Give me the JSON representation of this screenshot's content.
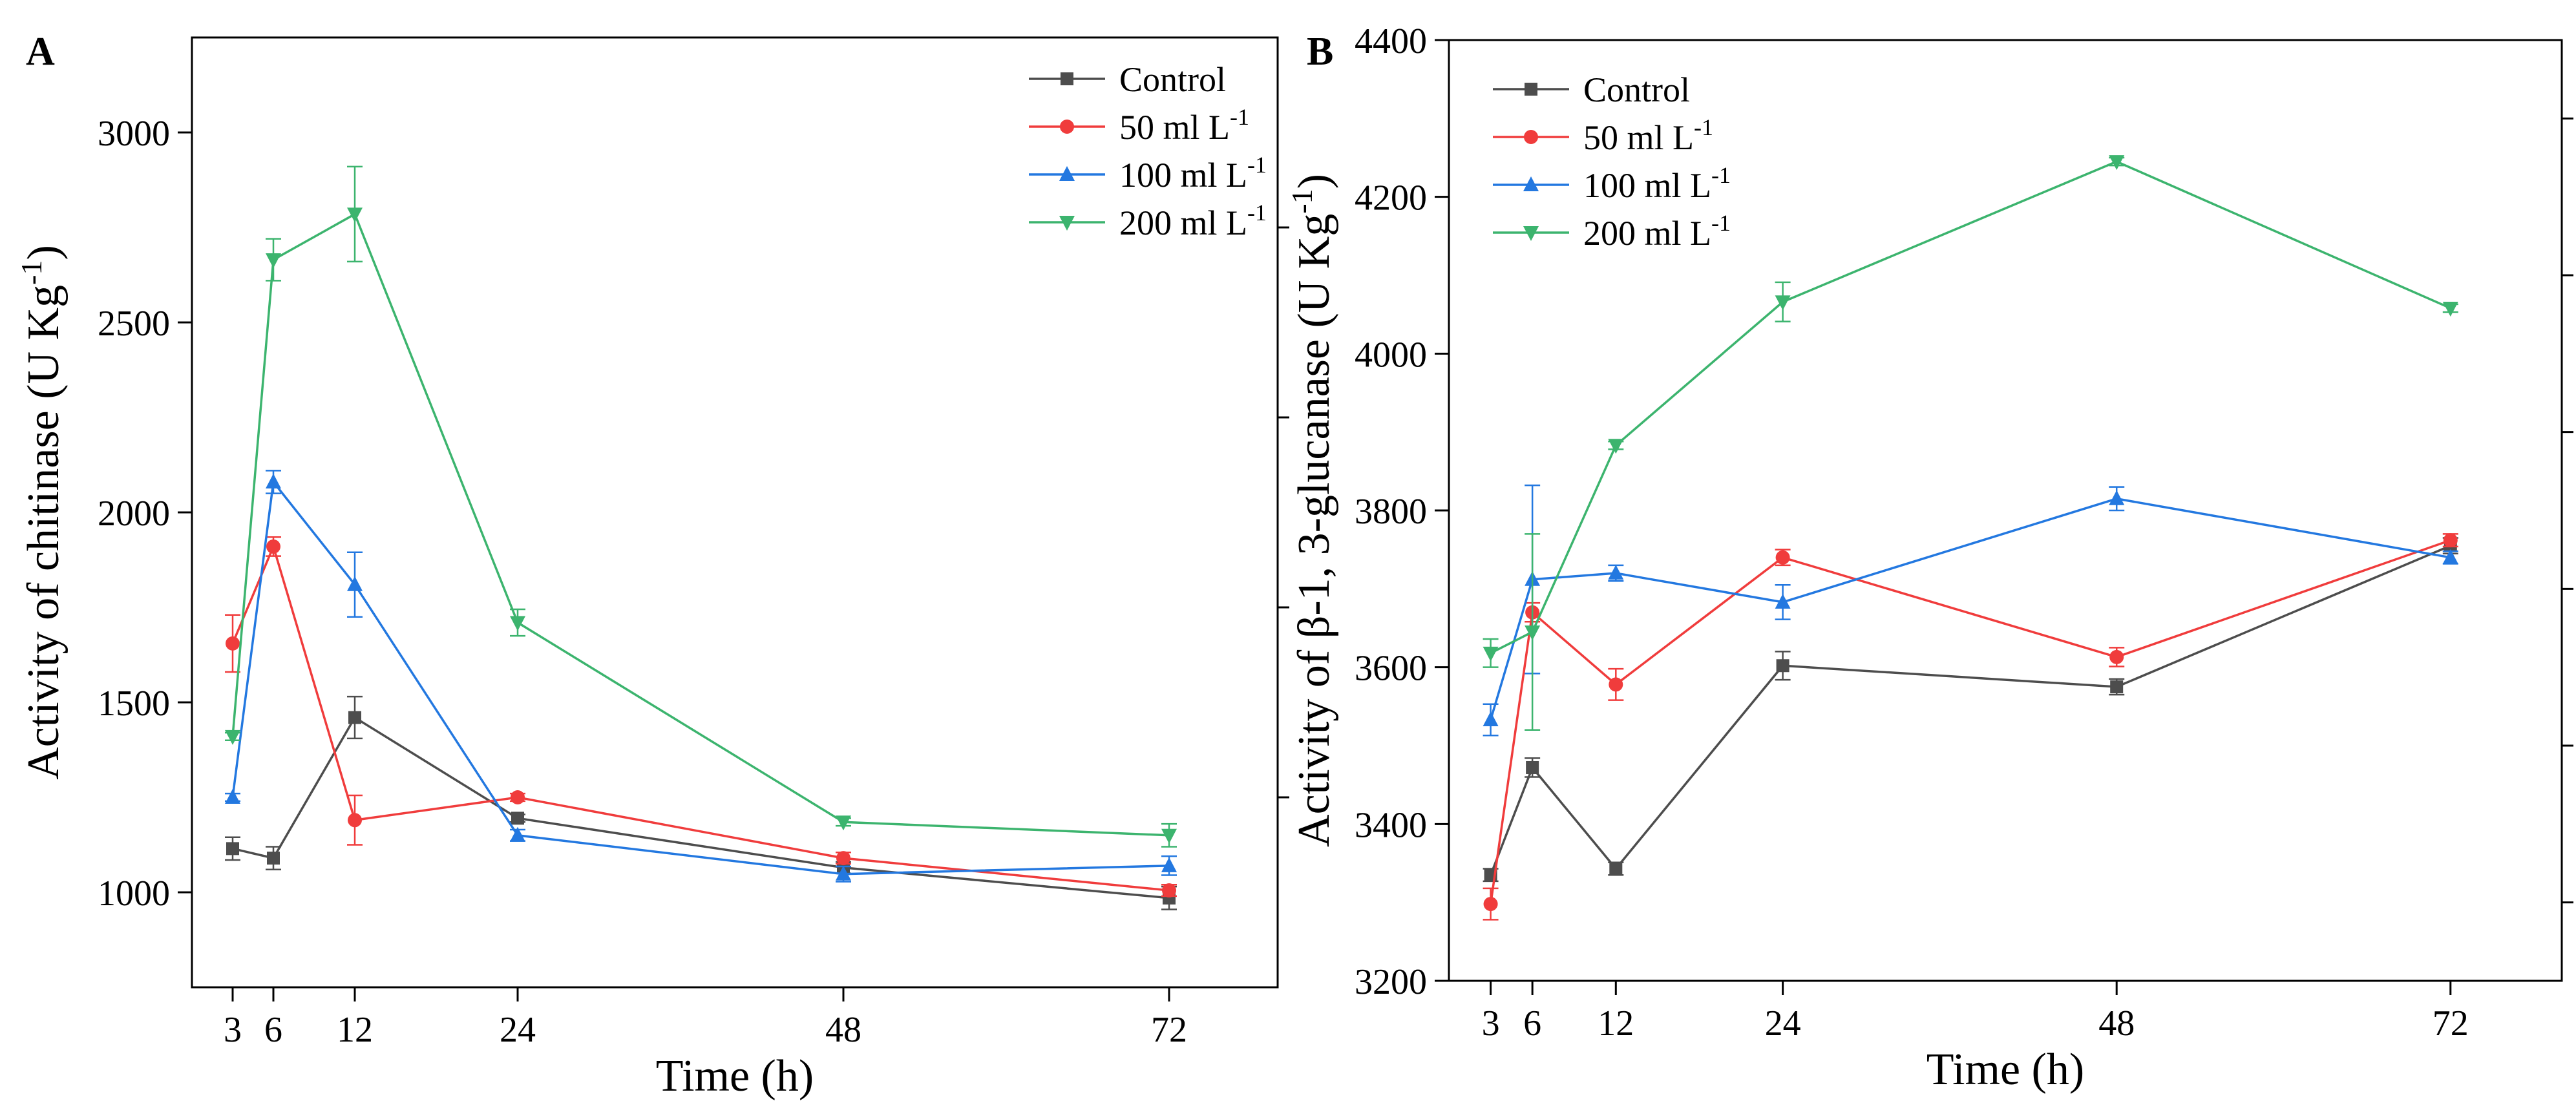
{
  "chart_data": [
    {
      "type": "line",
      "panel_label": "A",
      "xlabel": "Time (h)",
      "ylabel": "Activity of chitinase (U Kg",
      "ylabel_sup": "-1",
      "ylabel_tail": ")",
      "x": [
        3,
        6,
        12,
        24,
        48,
        72
      ],
      "x_ticks": [
        "3",
        "6",
        "12",
        "24",
        "48",
        "72"
      ],
      "xlim": [
        0,
        80
      ],
      "ylim": [
        750,
        3250
      ],
      "y_ticks": [
        "1000",
        "1500",
        "2000",
        "2500",
        "3000"
      ],
      "legend_position": "top-right",
      "series": [
        {
          "name": "Control",
          "unit_base": "",
          "unit_sup": "",
          "color": "#4d4d4d",
          "marker": "square",
          "values": [
            1115,
            1090,
            1460,
            1195,
            1065,
            985
          ],
          "errors": [
            30,
            30,
            55,
            10,
            15,
            30
          ]
        },
        {
          "name": "50 ml L",
          "unit_sup": "-1",
          "color": "#f03c3c",
          "marker": "circle",
          "values": [
            1655,
            1910,
            1190,
            1250,
            1090,
            1005
          ],
          "errors": [
            75,
            25,
            65,
            10,
            15,
            15
          ]
        },
        {
          "name": "100 ml L",
          "unit_sup": "-1",
          "color": "#2378e0",
          "marker": "triangle-up",
          "values": [
            1250,
            2080,
            1810,
            1150,
            1048,
            1070
          ],
          "errors": [
            10,
            30,
            85,
            15,
            20,
            25
          ]
        },
        {
          "name": "200 ml L",
          "unit_sup": "-1",
          "color": "#3cb46e",
          "marker": "triangle-down",
          "values": [
            1410,
            2665,
            2785,
            1710,
            1185,
            1150
          ],
          "errors": [
            10,
            55,
            125,
            35,
            10,
            30
          ]
        }
      ]
    },
    {
      "type": "line",
      "panel_label": "B",
      "xlabel": "Time (h)",
      "ylabel": "Activity of β-1, 3-glucanase (U Kg",
      "ylabel_sup": "-1",
      "ylabel_tail": ")",
      "x": [
        3,
        6,
        12,
        24,
        48,
        72
      ],
      "x_ticks": [
        "3",
        "6",
        "12",
        "24",
        "48",
        "72"
      ],
      "xlim": [
        0,
        80
      ],
      "ylim": [
        3200,
        4400
      ],
      "y_ticks": [
        "3200",
        "3400",
        "3600",
        "3800",
        "4000",
        "4200",
        "4400"
      ],
      "legend_position": "top-left",
      "series": [
        {
          "name": "Control",
          "unit_sup": "",
          "color": "#4d4d4d",
          "marker": "square",
          "values": [
            3335,
            3472,
            3343,
            3602,
            3575,
            3755
          ],
          "errors": [
            8,
            12,
            8,
            18,
            10,
            10
          ]
        },
        {
          "name": "50 ml L",
          "unit_sup": "-1",
          "color": "#f03c3c",
          "marker": "circle",
          "values": [
            3298,
            3670,
            3578,
            3740,
            3613,
            3762
          ],
          "errors": [
            20,
            12,
            20,
            10,
            12,
            8
          ]
        },
        {
          "name": "100 ml L",
          "unit_sup": "-1",
          "color": "#2378e0",
          "marker": "triangle-up",
          "values": [
            3533,
            3712,
            3720,
            3683,
            3815,
            3740
          ],
          "errors": [
            20,
            120,
            10,
            22,
            15,
            8
          ]
        },
        {
          "name": "200 ml L",
          "unit_sup": "-1",
          "color": "#3cb46e",
          "marker": "triangle-down",
          "values": [
            3618,
            3645,
            3883,
            4066,
            4245,
            4058
          ],
          "errors": [
            18,
            125,
            5,
            25,
            5,
            5
          ]
        }
      ]
    }
  ]
}
